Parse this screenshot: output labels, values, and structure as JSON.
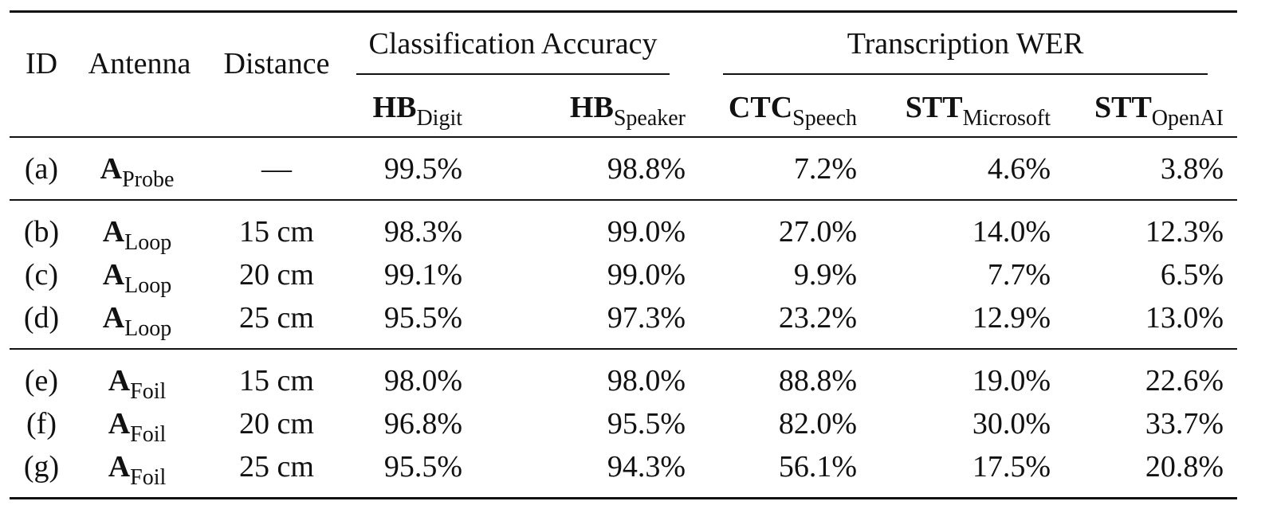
{
  "header": {
    "id": "ID",
    "antenna": "Antenna",
    "distance": "Distance",
    "groups": [
      {
        "title": "Classification Accuracy",
        "columns": [
          {
            "main": "HB",
            "sub": "Digit"
          },
          {
            "main": "HB",
            "sub": "Speaker"
          }
        ]
      },
      {
        "title": "Transcription WER",
        "columns": [
          {
            "main": "CTC",
            "sub": "Speech"
          },
          {
            "main": "STT",
            "sub": "Microsoft"
          },
          {
            "main": "STT",
            "sub": "OpenAI"
          }
        ]
      }
    ]
  },
  "sections": [
    [
      {
        "id": "(a)",
        "antenna": {
          "main": "A",
          "sub": "Probe"
        },
        "distance": "—",
        "values": [
          "99.5%",
          "98.8%",
          "7.2%",
          "4.6%",
          "3.8%"
        ]
      }
    ],
    [
      {
        "id": "(b)",
        "antenna": {
          "main": "A",
          "sub": "Loop"
        },
        "distance": "15 cm",
        "values": [
          "98.3%",
          "99.0%",
          "27.0%",
          "14.0%",
          "12.3%"
        ]
      },
      {
        "id": "(c)",
        "antenna": {
          "main": "A",
          "sub": "Loop"
        },
        "distance": "20 cm",
        "values": [
          "99.1%",
          "99.0%",
          "9.9%",
          "7.7%",
          "6.5%"
        ]
      },
      {
        "id": "(d)",
        "antenna": {
          "main": "A",
          "sub": "Loop"
        },
        "distance": "25 cm",
        "values": [
          "95.5%",
          "97.3%",
          "23.2%",
          "12.9%",
          "13.0%"
        ]
      }
    ],
    [
      {
        "id": "(e)",
        "antenna": {
          "main": "A",
          "sub": "Foil"
        },
        "distance": "15 cm",
        "values": [
          "98.0%",
          "98.0%",
          "88.8%",
          "19.0%",
          "22.6%"
        ]
      },
      {
        "id": "(f)",
        "antenna": {
          "main": "A",
          "sub": "Foil"
        },
        "distance": "20 cm",
        "values": [
          "96.8%",
          "95.5%",
          "82.0%",
          "30.0%",
          "33.7%"
        ]
      },
      {
        "id": "(g)",
        "antenna": {
          "main": "A",
          "sub": "Foil"
        },
        "distance": "25 cm",
        "values": [
          "95.5%",
          "94.3%",
          "56.1%",
          "17.5%",
          "20.8%"
        ]
      }
    ]
  ]
}
